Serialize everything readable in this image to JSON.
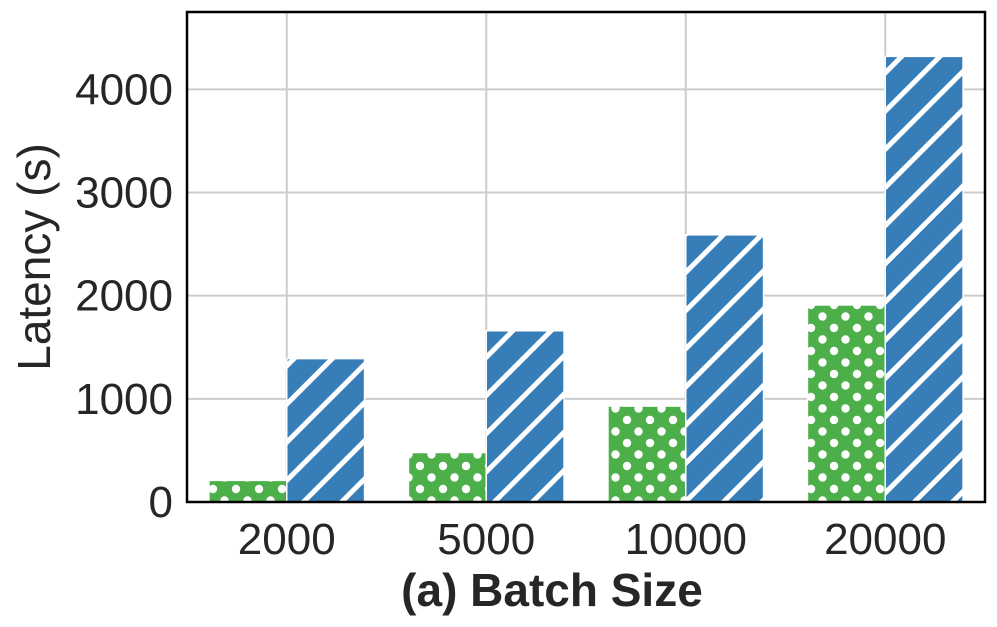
{
  "chart_data": {
    "type": "bar",
    "title": "",
    "xlabel": "(a) Batch Size",
    "ylabel": "Latency (s)",
    "categories": [
      "2000",
      "5000",
      "10000",
      "20000"
    ],
    "series": [
      {
        "values": [
          210,
          480,
          930,
          1910
        ],
        "color": "#4daf4a",
        "pattern": "dots"
      },
      {
        "values": [
          1390,
          1660,
          2590,
          4320
        ],
        "color": "#377eb8",
        "pattern": "diagonal-hatch"
      }
    ],
    "ylim": [
      0,
      4750
    ],
    "yticks": [
      "0",
      "1000",
      "2000",
      "3000",
      "4000"
    ],
    "grid": true,
    "legend": "none"
  }
}
